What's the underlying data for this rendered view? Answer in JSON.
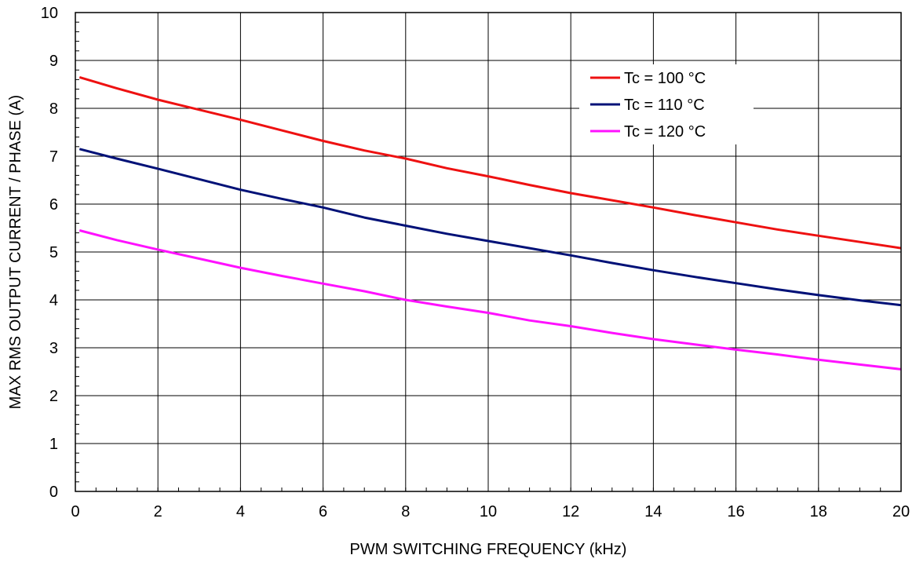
{
  "chart_data": {
    "type": "line",
    "xlabel": "PWM SWITCHING FREQUENCY (kHz)",
    "ylabel": "MAX RMS OUTPUT CURRENT / PHASE (A)",
    "xlim": [
      0,
      20
    ],
    "ylim": [
      0,
      10
    ],
    "x_ticks": [
      "0",
      "2",
      "4",
      "6",
      "8",
      "10",
      "12",
      "14",
      "16",
      "18",
      "20"
    ],
    "y_ticks": [
      "0",
      "1",
      "2",
      "3",
      "4",
      "5",
      "6",
      "7",
      "8",
      "9",
      "10"
    ],
    "grid": true,
    "legend_position": "top-right",
    "x": [
      0.1,
      1,
      2,
      3,
      4,
      5,
      6,
      7,
      8,
      9,
      10,
      11,
      12,
      13,
      14,
      15,
      16,
      17,
      18,
      19,
      20
    ],
    "series": [
      {
        "name": "Tc = 100 °C",
        "color": "#ee1111",
        "values": [
          8.65,
          8.42,
          8.18,
          7.97,
          7.76,
          7.54,
          7.32,
          7.12,
          6.95,
          6.75,
          6.58,
          6.4,
          6.23,
          6.08,
          5.93,
          5.77,
          5.62,
          5.47,
          5.34,
          5.21,
          5.08
        ]
      },
      {
        "name": "Tc = 110 °C",
        "color": "#001177",
        "values": [
          7.15,
          6.95,
          6.74,
          6.52,
          6.3,
          6.11,
          5.93,
          5.72,
          5.55,
          5.38,
          5.23,
          5.08,
          4.93,
          4.77,
          4.62,
          4.48,
          4.35,
          4.22,
          4.1,
          3.99,
          3.89
        ]
      },
      {
        "name": "Tc = 120 °C",
        "color": "#ff11ff",
        "values": [
          5.45,
          5.25,
          5.05,
          4.86,
          4.67,
          4.5,
          4.34,
          4.18,
          4.0,
          3.86,
          3.73,
          3.57,
          3.45,
          3.31,
          3.18,
          3.07,
          2.96,
          2.86,
          2.75,
          2.65,
          2.55
        ]
      }
    ]
  }
}
